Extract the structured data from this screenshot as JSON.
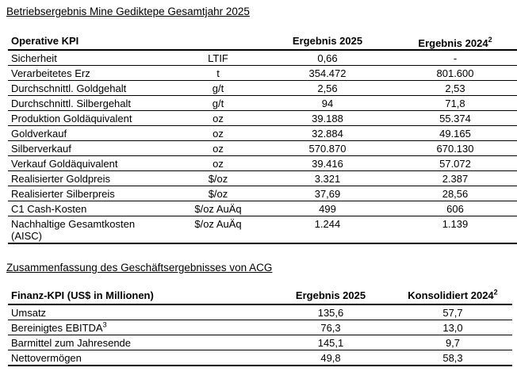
{
  "colors": {
    "background": "#ffffff",
    "text": "#000000",
    "table_lines": "#000000"
  },
  "sections": {
    "operations_title": "Betriebsergebnis Mine Gediktepe Gesamtjahr 2025",
    "financials_title": "Zusammenfassung des Geschäftsergebnisses von ACG"
  },
  "table1": {
    "header": {
      "kpi": "Operative KPI",
      "unit": "",
      "result_2025": "Ergebnis 2025",
      "result_2024": "Ergebnis 2024",
      "result_2024_sup": "2"
    },
    "rows": [
      {
        "kpi": "Sicherheit",
        "unit": "LTIF",
        "v2025": "0,66",
        "v2024": "-"
      },
      {
        "kpi": "Verarbeitetes Erz",
        "unit": "t",
        "v2025": "354.472",
        "v2024": "801.600"
      },
      {
        "kpi": "Durchschnittl. Goldgehalt",
        "unit": "g/t",
        "v2025": "2,56",
        "v2024": "2,53"
      },
      {
        "kpi": "Durchschnittl. Silbergehalt",
        "unit": "g/t",
        "v2025": "94",
        "v2024": "71,8"
      },
      {
        "kpi": "Produktion Goldäquivalent",
        "unit": "oz",
        "v2025": "39.188",
        "v2024": "55.374"
      },
      {
        "kpi": "Goldverkauf",
        "unit": "oz",
        "v2025": "32.884",
        "v2024": "49.165"
      },
      {
        "kpi": "Silberverkauf",
        "unit": "oz",
        "v2025": "570.870",
        "v2024": "670.130"
      },
      {
        "kpi": "Verkauf Goldäquivalent",
        "unit": "oz",
        "v2025": "39.416",
        "v2024": "57.072"
      },
      {
        "kpi": "Realisierter Goldpreis",
        "unit": "$/oz",
        "v2025": "3.321",
        "v2024": "2.387"
      },
      {
        "kpi": "Realisierter Silberpreis",
        "unit": "$/oz",
        "v2025": "37,69",
        "v2024": "28,56"
      },
      {
        "kpi": "C1 Cash-Kosten",
        "unit": "$/oz AuÄq",
        "v2025": "499",
        "v2024": "606"
      },
      {
        "kpi": "Nachhaltige Gesamtkosten",
        "kpi_line2": "(AISC)",
        "unit": "$/oz AuÄq",
        "v2025": "1.244",
        "v2024": "1.139"
      }
    ]
  },
  "table2": {
    "header": {
      "kpi": "Finanz-KPI (US$ in Millionen)",
      "result_2025": "Ergebnis 2025",
      "result_2024": "Konsolidiert 2024",
      "result_2024_sup": "2"
    },
    "rows": [
      {
        "kpi": "Umsatz",
        "v2025": "135,6",
        "v2024": "57,7"
      },
      {
        "kpi": "Bereinigtes EBITDA",
        "kpi_sup": "3",
        "v2025": "76,3",
        "v2024": "13,0"
      },
      {
        "kpi": "Barmittel zum Jahresende",
        "v2025": "145,1",
        "v2024": "9,7"
      },
      {
        "kpi": "Nettovermögen",
        "v2025": "49,8",
        "v2024": "58,3"
      }
    ]
  }
}
